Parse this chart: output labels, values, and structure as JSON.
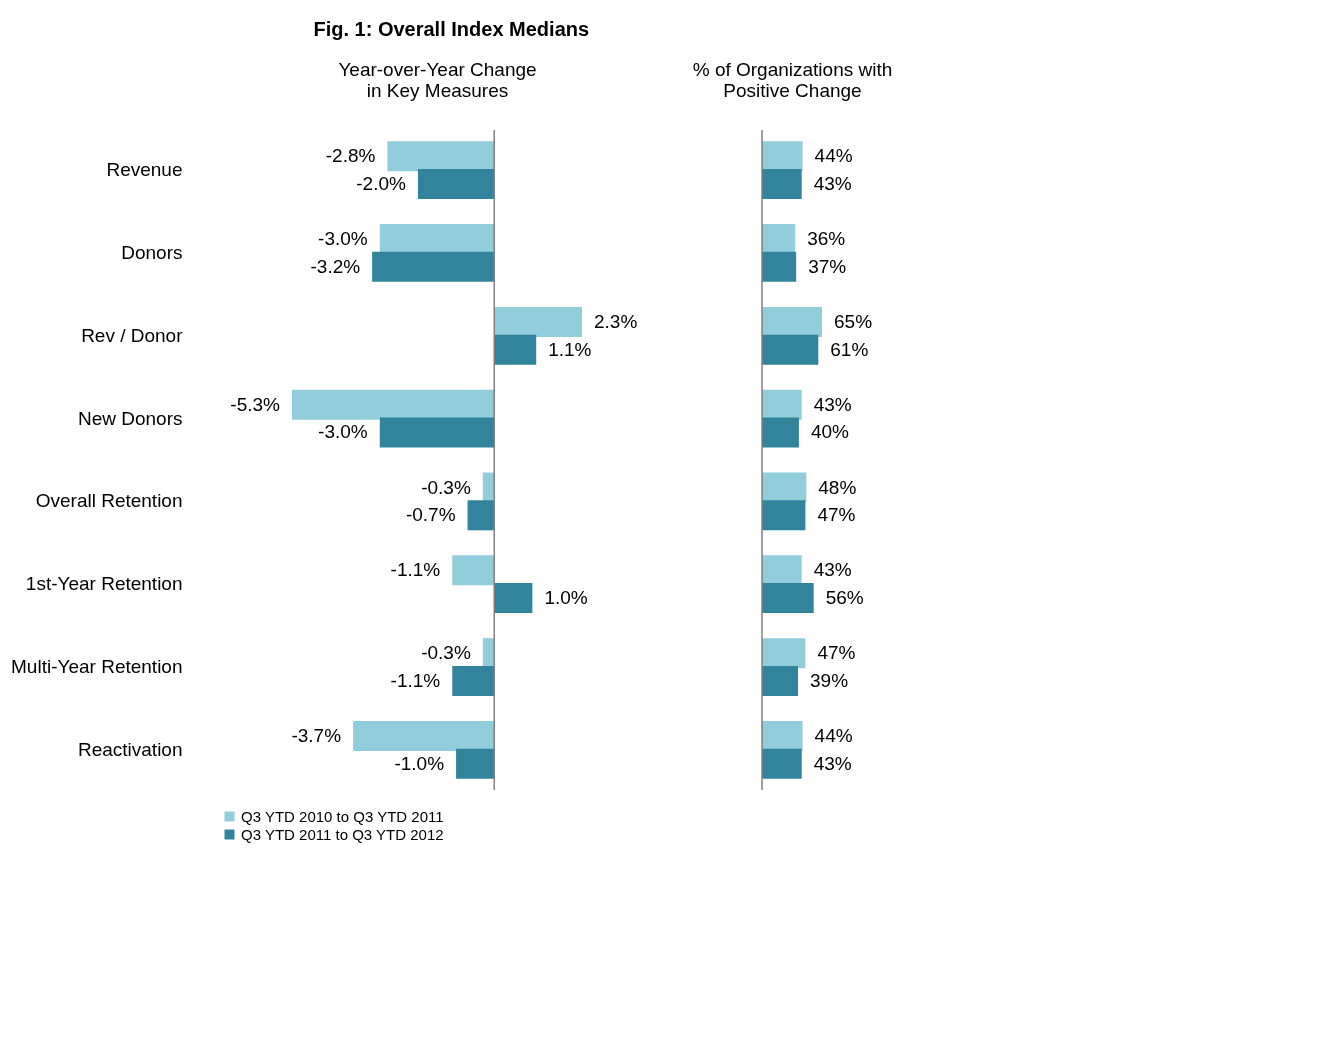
{
  "chart_data": [
    {
      "type": "bar",
      "orientation": "horizontal",
      "title": "Fig. 1: Overall Index Medians",
      "xlabel": "Year-over-Year Change\nin Key Measures",
      "categories": [
        "Revenue",
        "Donors",
        "Rev / Donor",
        "New Donors",
        "Overall Retention",
        "1st-Year Retention",
        "Multi-Year Retention",
        "Reactivation"
      ],
      "tick_labels": "y",
      "legend": "bottom",
      "series": [
        {
          "name": "Q3 YTD 2010 to Q3 YTD 2011",
          "color": "#92cddc",
          "values": [
            -2.8,
            -3.0,
            2.3,
            -5.3,
            -0.3,
            -1.1,
            -0.3,
            -3.7
          ],
          "value_labels": [
            "-2.8%",
            "-3.0%",
            "2.3%",
            "-5.3%",
            "-0.3%",
            "-1.1%",
            "-0.3%",
            "-3.7%"
          ]
        },
        {
          "name": "Q3 YTD 2011 to Q3 YTD 2012",
          "color": "#31849b",
          "values": [
            -2.0,
            -3.2,
            1.1,
            -3.0,
            -0.7,
            1.0,
            -1.1,
            -1.0
          ],
          "value_labels": [
            "-2.0%",
            "-3.2%",
            "1.1%",
            "-3.0%",
            "-0.7%",
            "1.0%",
            "-1.1%",
            "-1.0%"
          ]
        }
      ]
    },
    {
      "type": "bar",
      "orientation": "horizontal",
      "xlabel": "% of Organizations with\nPositive Change",
      "categories": [
        "Revenue",
        "Donors",
        "Rev / Donor",
        "New Donors",
        "Overall Retention",
        "1st-Year Retention",
        "Multi-Year Retention",
        "Reactivation"
      ],
      "tick_labels": false,
      "series": [
        {
          "name": "Q3 YTD 2010 to Q3 YTD 2011",
          "color": "#92cddc",
          "values": [
            44,
            36,
            65,
            43,
            48,
            43,
            47,
            44
          ],
          "value_labels": [
            "44%",
            "36%",
            "65%",
            "43%",
            "48%",
            "43%",
            "47%",
            "44%"
          ]
        },
        {
          "name": "Q3 YTD 2011 to Q3 YTD 2012",
          "color": "#31849b",
          "values": [
            43,
            37,
            61,
            40,
            47,
            56,
            39,
            43
          ],
          "value_labels": [
            "43%",
            "37%",
            "61%",
            "40%",
            "47%",
            "56%",
            "39%",
            "43%"
          ]
        }
      ]
    }
  ]
}
